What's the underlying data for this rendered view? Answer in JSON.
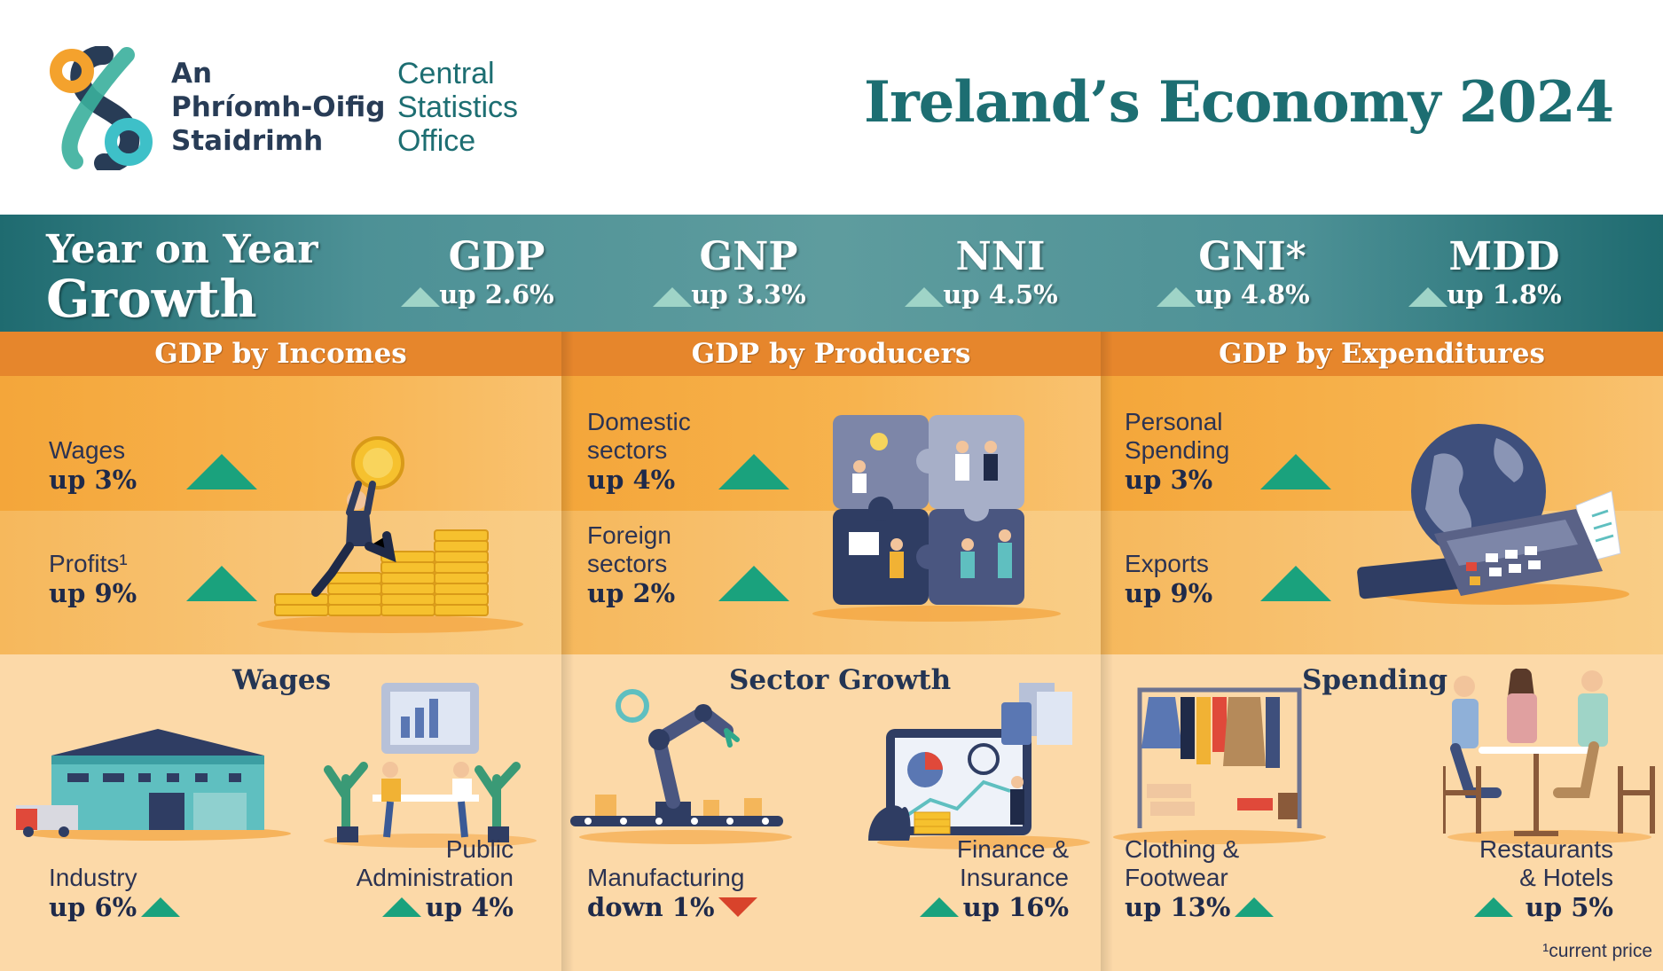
{
  "header": {
    "org_irish": [
      "An",
      "Phríomh-Oifig",
      "Staidrimh"
    ],
    "org_english": [
      "Central",
      "Statistics",
      "Office"
    ],
    "title": "Ireland’s Economy 2024"
  },
  "growth": {
    "title_line1": "Year on Year",
    "title_line2": "Growth",
    "metrics": [
      {
        "name": "GDP",
        "change": "up 2.6%"
      },
      {
        "name": "GNP",
        "change": "up 3.3%"
      },
      {
        "name": "NNI",
        "change": "up 4.5%"
      },
      {
        "name": "GNI*",
        "change": "up 4.8%"
      },
      {
        "name": "MDD",
        "change": "up 1.8%"
      }
    ]
  },
  "incomes": {
    "heading": "GDP by Incomes",
    "items": [
      {
        "label": "Wages",
        "value": "up 3%"
      },
      {
        "label": "Profits¹",
        "value": "up 9%"
      }
    ],
    "subheading": "Wages",
    "details": [
      {
        "label": "Industry",
        "value": "up 6%"
      },
      {
        "label_line1": "Public",
        "label_line2": "Administration",
        "value": "up 4%"
      }
    ]
  },
  "producers": {
    "heading": "GDP by Producers",
    "items": [
      {
        "label_line1": "Domestic",
        "label_line2": "sectors",
        "value": "up 4%"
      },
      {
        "label_line1": "Foreign",
        "label_line2": "sectors",
        "value": "up 2%"
      }
    ],
    "subheading": "Sector Growth",
    "details": [
      {
        "label": "Manufacturing",
        "value": "down 1%"
      },
      {
        "label_line1": "Finance &",
        "label_line2": "Insurance",
        "value": "up 16%"
      }
    ]
  },
  "expenditures": {
    "heading": "GDP by Expenditures",
    "items": [
      {
        "label_line1": "Personal",
        "label_line2": "Spending",
        "value": "up 3%"
      },
      {
        "label": "Exports",
        "value": "up 9%"
      }
    ],
    "subheading": "Spending",
    "details": [
      {
        "label_line1": "Clothing &",
        "label_line2": "Footwear",
        "value": "up 13%"
      },
      {
        "label_line1": "Restaurants",
        "label_line2": "& Hotels",
        "value": "up 5%"
      }
    ]
  },
  "footnote": "¹current price",
  "colors": {
    "teal": "#1d6e72",
    "orange": "#e6862c",
    "up_green": "#1aa27d",
    "down_red": "#d8432b",
    "navy": "#283c56"
  }
}
